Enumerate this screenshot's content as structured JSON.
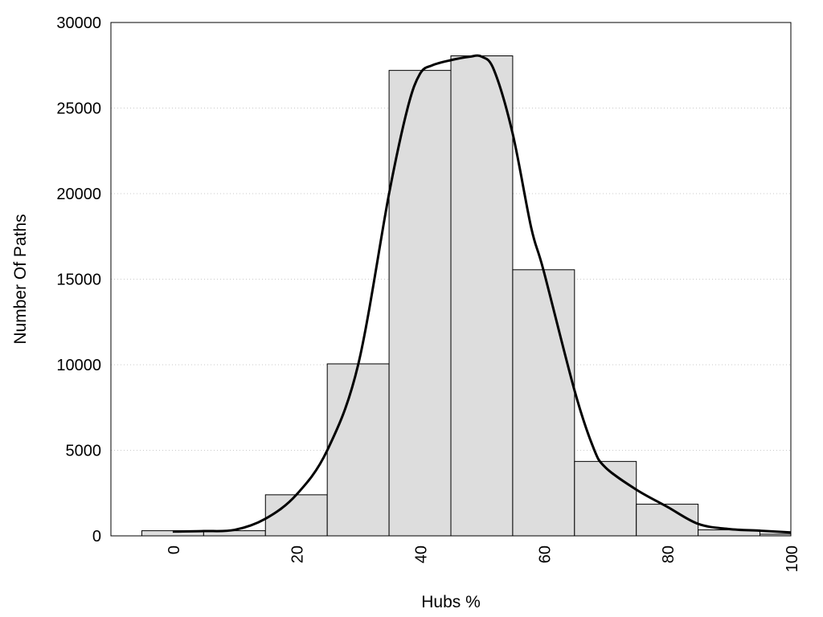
{
  "chart_data": {
    "type": "bar",
    "overlay": "line",
    "xlabel": "Hubs %",
    "ylabel": "Number Of Paths",
    "xlim": [
      -10,
      100
    ],
    "ylim": [
      0,
      30000
    ],
    "x_ticks": [
      0,
      20,
      40,
      60,
      80,
      100
    ],
    "y_ticks": [
      0,
      5000,
      10000,
      15000,
      20000,
      25000,
      30000
    ],
    "grid": "horizontal dotted",
    "bin_width": 10,
    "bars": [
      {
        "center": 0,
        "value": 300
      },
      {
        "center": 10,
        "value": 300
      },
      {
        "center": 20,
        "value": 2400
      },
      {
        "center": 30,
        "value": 10050
      },
      {
        "center": 40,
        "value": 27200
      },
      {
        "center": 50,
        "value": 28050
      },
      {
        "center": 60,
        "value": 15550
      },
      {
        "center": 70,
        "value": 4350
      },
      {
        "center": 80,
        "value": 1850
      },
      {
        "center": 90,
        "value": 350
      },
      {
        "center": 100,
        "value": 100
      }
    ],
    "density_curve": {
      "x": [
        0,
        5,
        10,
        15,
        20,
        25,
        30,
        35,
        38,
        40,
        42,
        45,
        48,
        50,
        52,
        55,
        58,
        60,
        65,
        68,
        70,
        75,
        80,
        85,
        90,
        95,
        100
      ],
      "y": [
        250,
        280,
        350,
        1000,
        2400,
        5000,
        10000,
        20000,
        25000,
        27000,
        27500,
        27800,
        28000,
        28000,
        27200,
        23500,
        18000,
        15500,
        8500,
        5200,
        4000,
        2700,
        1700,
        700,
        400,
        300,
        200
      ]
    },
    "colors": {
      "bar_fill": "#dddddd",
      "bar_stroke": "#000000",
      "curve": "#000000",
      "grid": "#c8c8c8"
    }
  }
}
